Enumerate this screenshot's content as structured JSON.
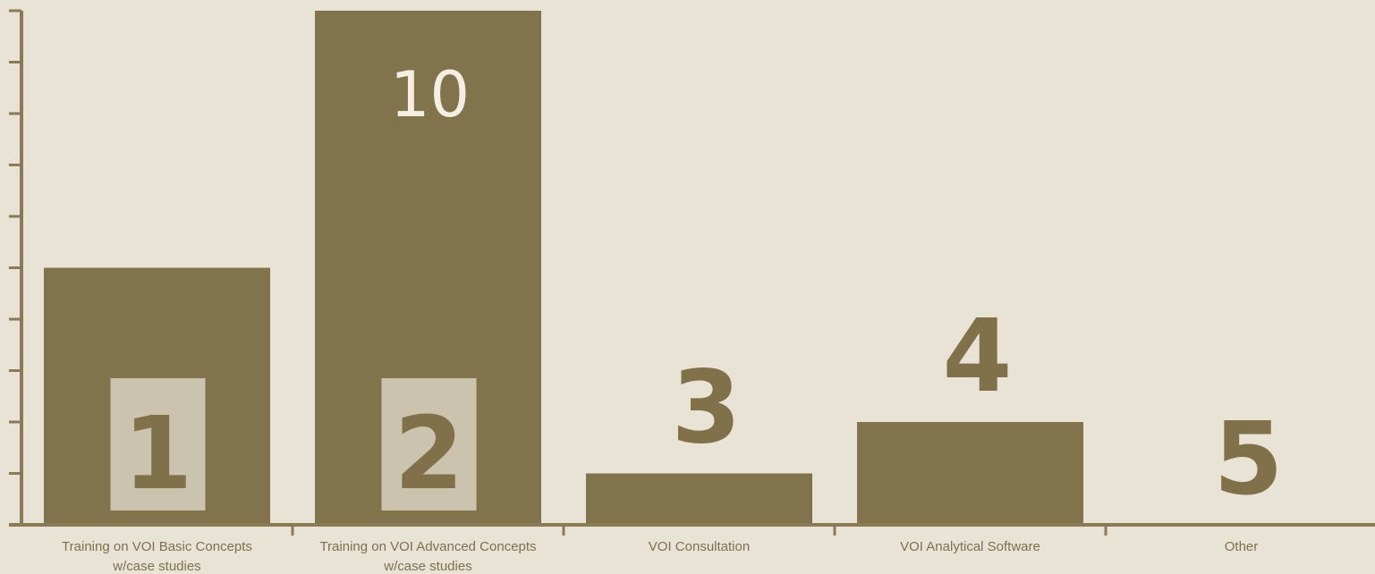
{
  "colors": {
    "background": "#e9e3d5",
    "bar": "#81744d",
    "axis": "#8a7b56",
    "badge": "#ccc3ae",
    "rank_text": "#80714b",
    "value_text": "#f4efe2"
  },
  "chart_data": {
    "type": "bar",
    "categories": [
      [
        "Training on VOI Basic Concepts",
        "w/case studies"
      ],
      [
        "Training on VOI Advanced Concepts",
        "w/case studies"
      ],
      [
        "VOI Consultation"
      ],
      [
        "VOI Analytical Software"
      ],
      [
        "Other"
      ]
    ],
    "values": [
      5,
      10,
      1,
      2,
      0
    ],
    "rank_labels": [
      "1",
      "2",
      "3",
      "4",
      "5"
    ],
    "rank_badged": [
      true,
      true,
      false,
      false,
      false
    ],
    "data_labels": [
      "",
      "10",
      "",
      "",
      ""
    ],
    "ylim": [
      0,
      10
    ],
    "y_ticks": 10,
    "title": "",
    "xlabel": "",
    "ylabel": "",
    "grid": false,
    "legend": "none"
  }
}
